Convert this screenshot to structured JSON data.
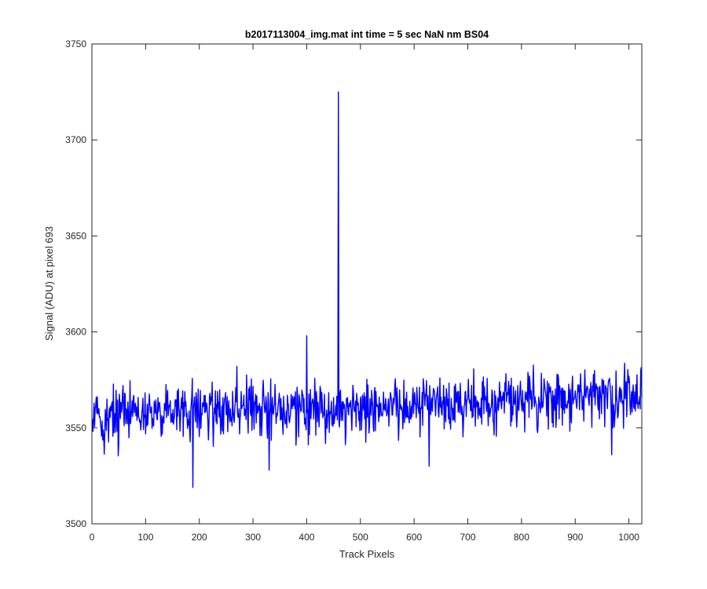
{
  "chart_data": {
    "type": "line",
    "title": "b2017113004_img.mat int time = 5 sec  NaN nm BS04",
    "xlabel": "Track Pixels",
    "ylabel": "Signal (ADU) at pixel 693",
    "xlim": [
      0,
      1024
    ],
    "ylim": [
      3500,
      3750
    ],
    "xticks": [
      0,
      100,
      200,
      300,
      400,
      500,
      600,
      700,
      800,
      900,
      1000
    ],
    "yticks": [
      3500,
      3550,
      3600,
      3650,
      3700,
      3750
    ],
    "xtick_labels": [
      "0",
      "100",
      "200",
      "300",
      "400",
      "500",
      "600",
      "700",
      "800",
      "900",
      "1000"
    ],
    "ytick_labels": [
      "3500",
      "3550",
      "3600",
      "3650",
      "3700",
      "3750"
    ],
    "grid": false,
    "line_color": "#0000ff",
    "series": [
      {
        "x_start": 1,
        "x_end": 1024,
        "points": 1024,
        "baseline": 3556,
        "trend_end": 3566,
        "noise_std": 7,
        "notable_points": [
          {
            "x": 188,
            "y": 3519
          },
          {
            "x": 270,
            "y": 3582
          },
          {
            "x": 330,
            "y": 3528
          },
          {
            "x": 400,
            "y": 3598
          },
          {
            "x": 459,
            "y": 3725
          },
          {
            "x": 628,
            "y": 3530
          },
          {
            "x": 968,
            "y": 3536
          },
          {
            "x": 1022,
            "y": 3580
          }
        ]
      }
    ]
  }
}
